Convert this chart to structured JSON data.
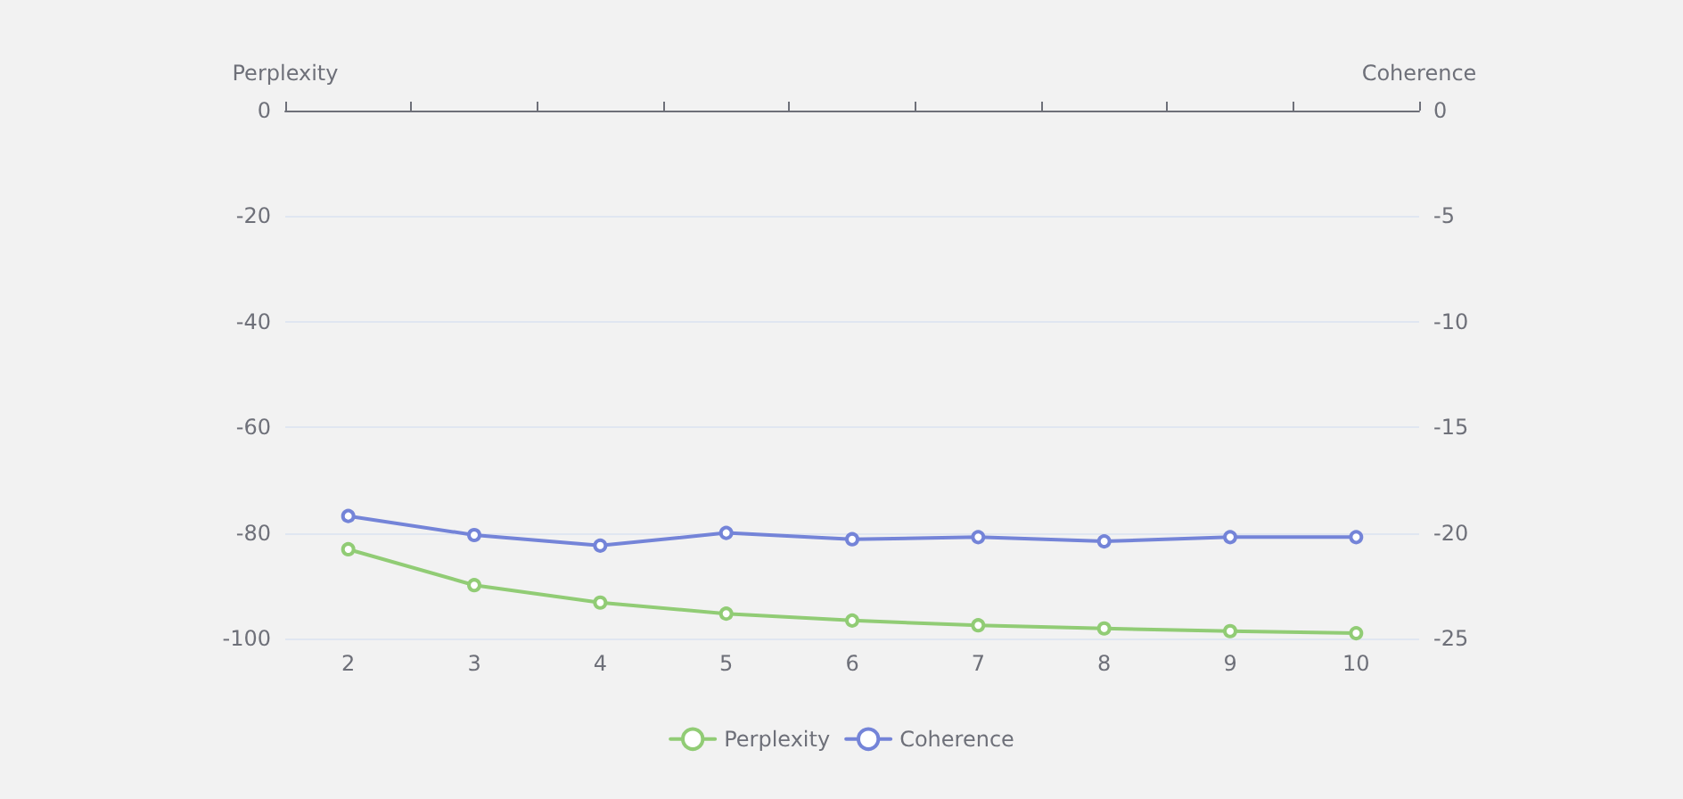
{
  "chart_data": {
    "type": "line",
    "categories": [
      "2",
      "3",
      "4",
      "5",
      "6",
      "7",
      "8",
      "9",
      "10"
    ],
    "ylabel": "Perplexity",
    "y2label": "Coherence",
    "ylim": [
      -100,
      0
    ],
    "yticks": [
      -100,
      -80,
      -60,
      -40,
      -20,
      0
    ],
    "y2lim": [
      -25,
      0
    ],
    "y2ticks": [
      -25,
      -20,
      -15,
      -10,
      -5,
      0
    ],
    "series": [
      {
        "name": "Perplexity",
        "color": "#91cc75",
        "values": [
          -83.1,
          -89.9,
          -93.2,
          -95.3,
          -96.6,
          -97.5,
          -98.1,
          -98.6,
          -99.0
        ]
      },
      {
        "name": "Coherence",
        "color": "#7484d8",
        "axis": "y2",
        "values": [
          -19.2,
          -20.1,
          -20.6,
          -20.0,
          -20.3,
          -20.2,
          -20.4,
          -20.2,
          -20.2
        ]
      }
    ],
    "grid": "y",
    "legend": "bottom",
    "marker": "circle",
    "line_style": "solid"
  }
}
